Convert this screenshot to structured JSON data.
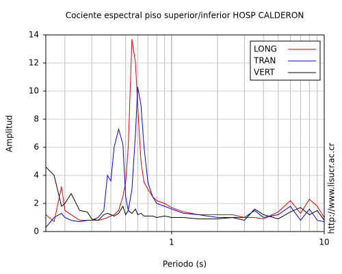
{
  "chart_data": {
    "type": "line",
    "title": "Cociente espectral piso superior/inferior  HOSP CALDERON",
    "xlabel": "Periodo (s)",
    "ylabel": "Amplitud",
    "side_text": "http://www.lisucr.ac.cr",
    "x": [
      0.15,
      0.17,
      0.19,
      0.2,
      0.22,
      0.25,
      0.28,
      0.3,
      0.33,
      0.36,
      0.38,
      0.4,
      0.42,
      0.45,
      0.48,
      0.5,
      0.52,
      0.55,
      0.58,
      0.6,
      0.63,
      0.66,
      0.7,
      0.75,
      0.8,
      0.9,
      1,
      1.2,
      1.5,
      2,
      2.5,
      3,
      3.5,
      4,
      5,
      6,
      7,
      8,
      9,
      10
    ],
    "series": [
      {
        "name": "LONG",
        "color": "#e00000",
        "values": [
          1.2,
          0.7,
          3.2,
          1.5,
          1.2,
          0.8,
          0.8,
          0.8,
          0.8,
          0.9,
          1.0,
          1.1,
          1.2,
          1.5,
          2.5,
          3.5,
          6,
          13.7,
          12,
          9,
          5,
          3.5,
          3,
          2.5,
          2.2,
          2.0,
          1.7,
          1.4,
          1.2,
          1.2,
          1.2,
          1.0,
          1.0,
          0.9,
          1.4,
          2.2,
          1.3,
          2.3,
          1.8,
          1.0
        ]
      },
      {
        "name": "TRAN",
        "color": "#0000e0",
        "values": [
          0.3,
          1.0,
          1.3,
          1.0,
          0.8,
          0.7,
          0.8,
          0.8,
          1.0,
          1.5,
          4,
          3.6,
          6,
          7.3,
          6.2,
          2.5,
          1.5,
          3,
          7,
          10.3,
          9,
          6,
          3.5,
          2.5,
          2.0,
          1.8,
          1.6,
          1.3,
          1.2,
          1.0,
          1.0,
          1.0,
          1.5,
          1.0,
          1.2,
          1.8,
          0.8,
          1.6,
          0.8,
          0.7
        ]
      },
      {
        "name": "VERT",
        "color": "#000000",
        "values": [
          4.6,
          4,
          1.8,
          2.0,
          2.7,
          1.5,
          1.4,
          0.9,
          0.8,
          1.2,
          1.3,
          1.2,
          1.1,
          1.3,
          1.8,
          1.2,
          1.5,
          1.3,
          1.6,
          1.2,
          1.3,
          1.1,
          1.1,
          1.1,
          1.0,
          1.1,
          1.0,
          1.0,
          0.9,
          0.9,
          1.0,
          0.8,
          1.6,
          1.2,
          0.9,
          1.4,
          1.7,
          1.2,
          1.5,
          0.8
        ]
      }
    ],
    "log_x": true,
    "xlim": [
      0.15,
      10
    ],
    "xticks": [
      1,
      10
    ],
    "minor_xticks": [
      0.2,
      0.3,
      0.4,
      0.5,
      0.6,
      0.7,
      0.8,
      0.9,
      2,
      3,
      4,
      5,
      6,
      7,
      8,
      9
    ],
    "ylim": [
      0,
      14
    ],
    "yticks": [
      0,
      2,
      4,
      6,
      8,
      10,
      12,
      14
    ],
    "grid": true,
    "legend": "upper right"
  }
}
